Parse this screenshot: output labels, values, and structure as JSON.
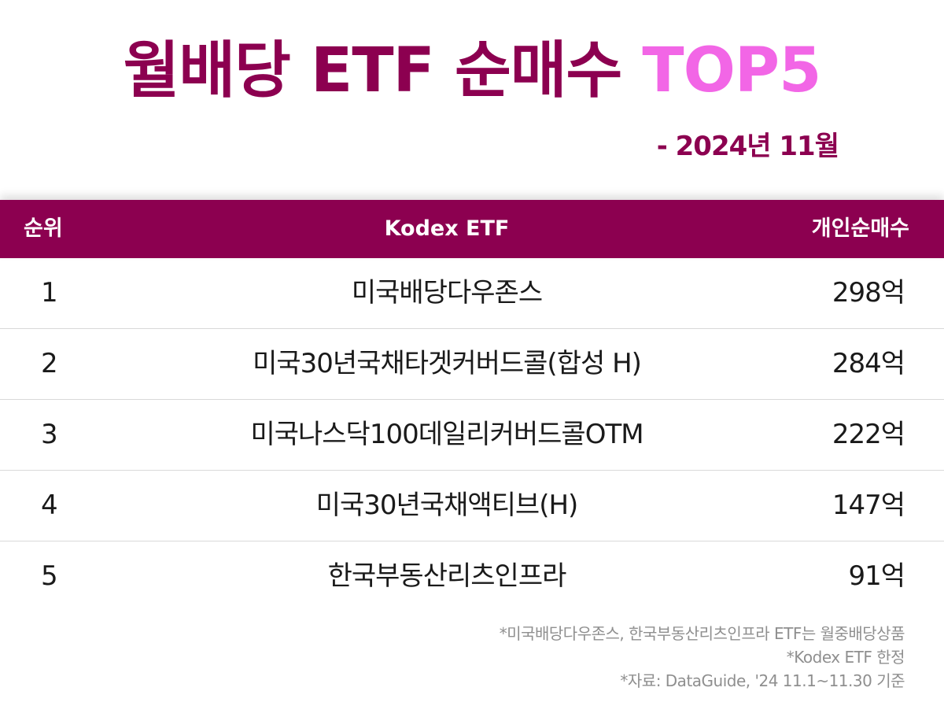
{
  "title": {
    "main": "월배당 ETF 순매수 ",
    "accent": "TOP5"
  },
  "subtitle": "- 2024년 11월",
  "colors": {
    "brand": "#8c0050",
    "accent": "#f266e6",
    "note": "#8f8f8f"
  },
  "table": {
    "headers": {
      "rank": "순위",
      "name": "Kodex ETF",
      "buy": "개인순매수"
    },
    "rows": [
      {
        "rank": "1",
        "name": "미국배당다우존스",
        "buy": "298억"
      },
      {
        "rank": "2",
        "name": "미국30년국채타겟커버드콜(합성 H)",
        "buy": "284억"
      },
      {
        "rank": "3",
        "name": "미국나스닥100데일리커버드콜OTM",
        "buy": "222억"
      },
      {
        "rank": "4",
        "name": "미국30년국채액티브(H)",
        "buy": "147억"
      },
      {
        "rank": "5",
        "name": "한국부동산리츠인프라",
        "buy": "91억"
      }
    ]
  },
  "notes": [
    "*미국배당다우존스, 한국부동산리츠인프라 ETF는 월중배당상품",
    "*Kodex ETF 한정",
    "*자료: DataGuide, '24 11.1~11.30 기준"
  ]
}
